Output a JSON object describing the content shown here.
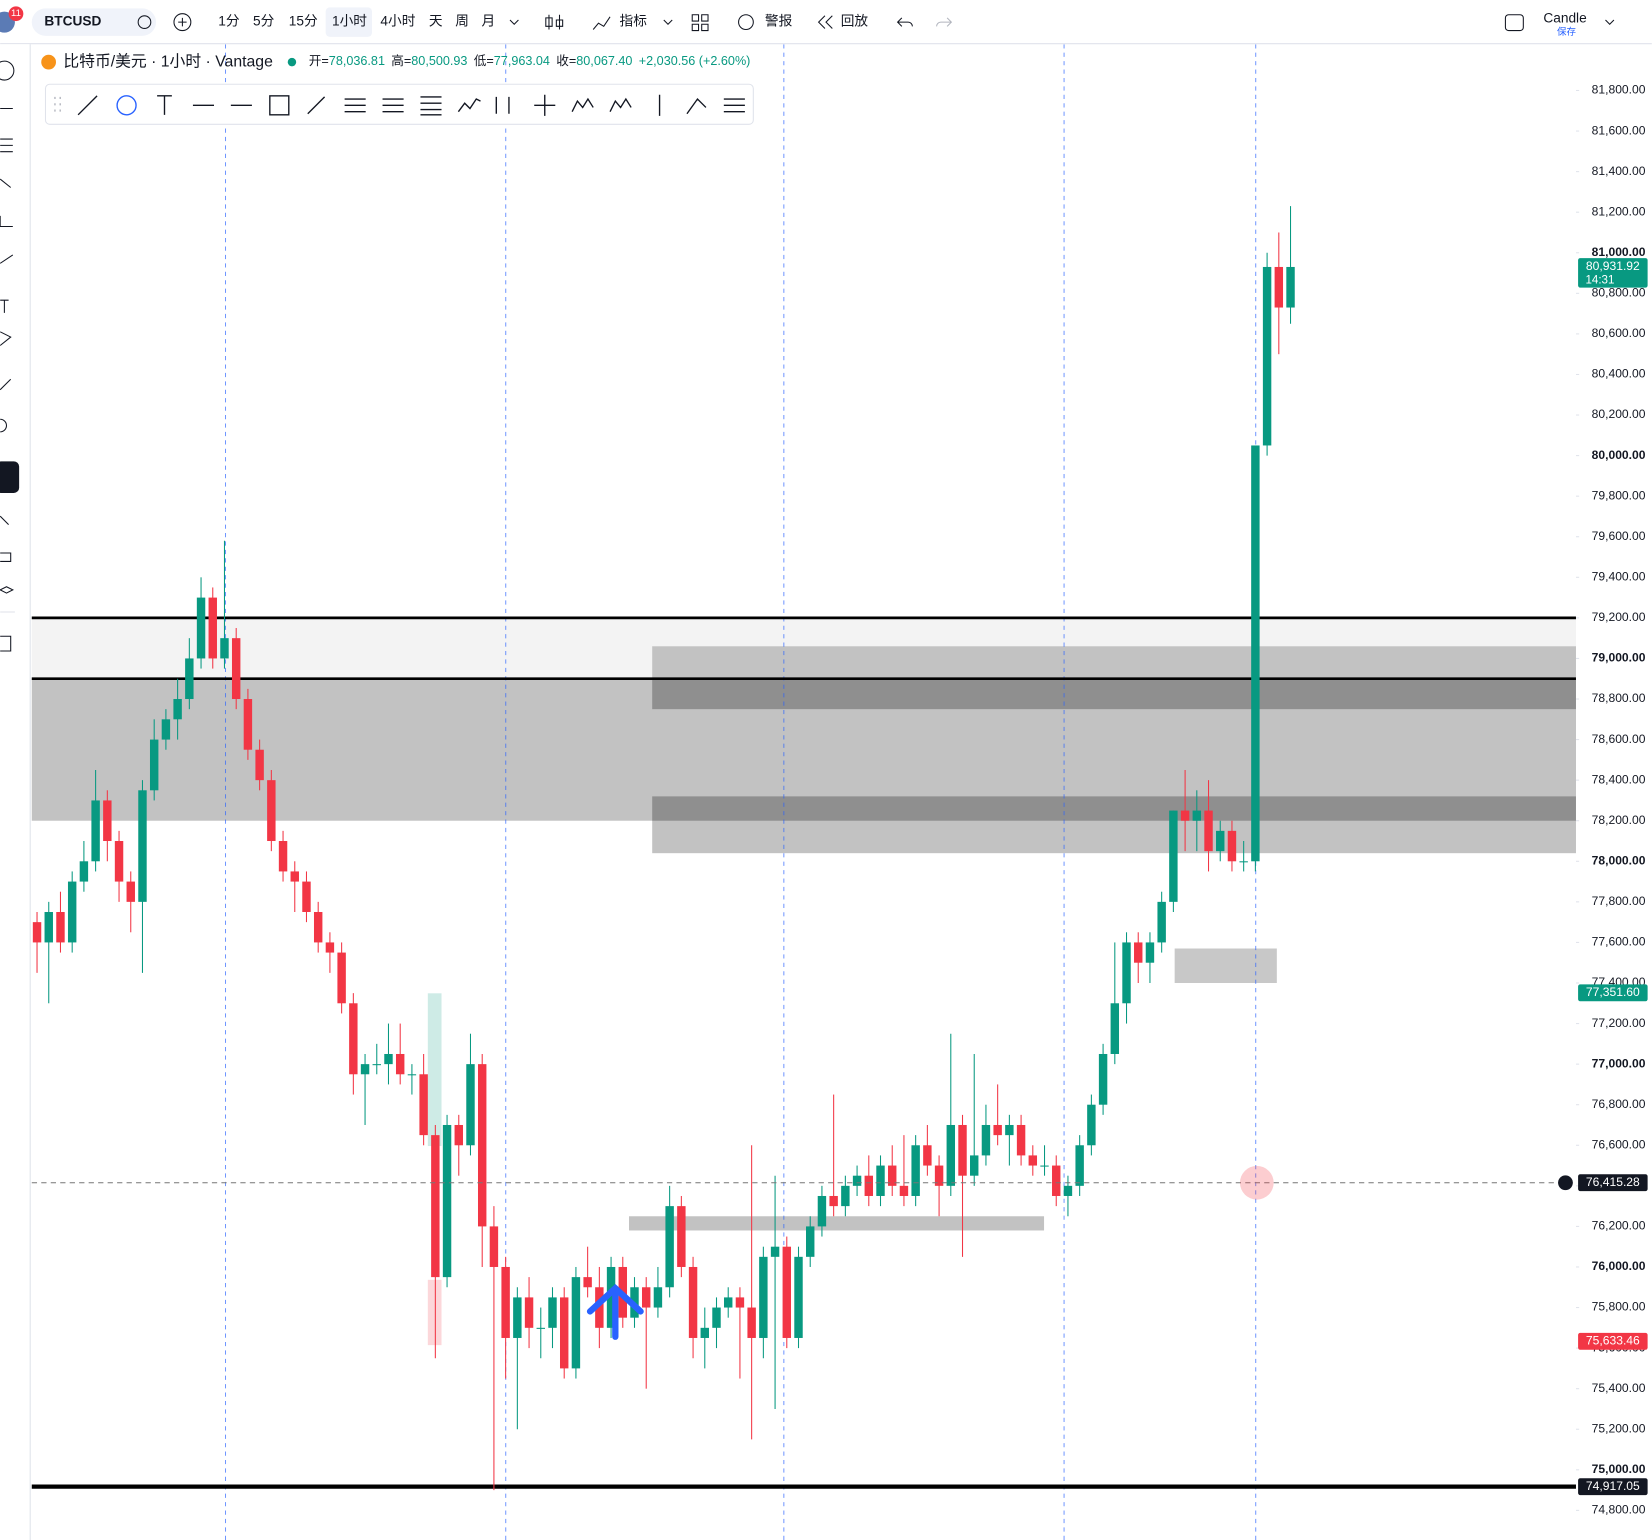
{
  "toolbar": {
    "symbol": "BTCUSD",
    "intervals": [
      "1分",
      "5分",
      "15分",
      "1小时",
      "4小时",
      "天",
      "周",
      "月"
    ],
    "indicators": "指标",
    "alert": "警报",
    "replay": "回放",
    "layout": "Candle",
    "save": "保存",
    "badge": "11"
  },
  "legend": {
    "title": "比特币/美元 · 1小时 · Vantage",
    "items": [
      {
        "k": "开=",
        "v": "78,036.81"
      },
      {
        "k": "高=",
        "v": "80,500.93"
      },
      {
        "k": "低=",
        "v": "77,963.04"
      },
      {
        "k": "收=",
        "v": "80,067.40"
      }
    ],
    "change": "+2,030.56 (+2.60%)"
  },
  "chart_data": {
    "type": "candlestick",
    "up_color": "#089981",
    "down_color": "#f23645",
    "ylim": [
      74654,
      82028
    ],
    "yticks": [
      {
        "value": 81800,
        "label": "81,800.00"
      },
      {
        "value": 81600,
        "label": "81,600.00"
      },
      {
        "value": 81400,
        "label": "81,400.00"
      },
      {
        "value": 81200,
        "label": "81,200.00"
      },
      {
        "value": 81000,
        "label": "81,000.00"
      },
      {
        "value": 80800,
        "label": "80,800.00"
      },
      {
        "value": 80600,
        "label": "80,600.00"
      },
      {
        "value": 80400,
        "label": "80,400.00"
      },
      {
        "value": 80200,
        "label": "80,200.00"
      },
      {
        "value": 80000,
        "label": "80,000.00"
      },
      {
        "value": 79800,
        "label": "79,800.00"
      },
      {
        "value": 79600,
        "label": "79,600.00"
      },
      {
        "value": 79400,
        "label": "79,400.00"
      },
      {
        "value": 79200,
        "label": "79,200.00"
      },
      {
        "value": 79000,
        "label": "79,000.00"
      },
      {
        "value": 78800,
        "label": "78,800.00"
      },
      {
        "value": 78600,
        "label": "78,600.00"
      },
      {
        "value": 78400,
        "label": "78,400.00"
      },
      {
        "value": 78200,
        "label": "78,200.00"
      },
      {
        "value": 78000,
        "label": "78,000.00"
      },
      {
        "value": 77800,
        "label": "77,800.00"
      },
      {
        "value": 77600,
        "label": "77,600.00"
      },
      {
        "value": 77400,
        "label": "77,400.00"
      },
      {
        "value": 77200,
        "label": "77,200.00"
      },
      {
        "value": 77000,
        "label": "77,000.00"
      },
      {
        "value": 76800,
        "label": "76,800.00"
      },
      {
        "value": 76600,
        "label": "76,600.00"
      },
      {
        "value": 76400,
        "label": "76,400.00"
      },
      {
        "value": 76200,
        "label": "76,200.00"
      },
      {
        "value": 76000,
        "label": "76,000.00"
      },
      {
        "value": 75800,
        "label": "75,800.00"
      },
      {
        "value": 75600,
        "label": "75,600.00"
      },
      {
        "value": 75400,
        "label": "75,400.00"
      },
      {
        "value": 75200,
        "label": "75,200.00"
      },
      {
        "value": 75000,
        "label": "75,000.00"
      },
      {
        "value": 74800,
        "label": "74,800.00"
      }
    ],
    "price_tags": [
      {
        "value": 80931.92,
        "label": "80,931.92",
        "sub": "14:31",
        "color": "#089981"
      },
      {
        "value": 77351.6,
        "label": "77,351.60",
        "color": "#089981"
      },
      {
        "value": 75633.46,
        "label": "75,633.46",
        "color": "#f23645"
      },
      {
        "value": 74917.05,
        "label": "74,917.05",
        "color": "#131722"
      },
      {
        "value": 76415.28,
        "label": "76,415.28",
        "color": "#131722"
      }
    ],
    "levels": [
      79200,
      78900,
      74917.05
    ],
    "zones": [
      {
        "from": 79200,
        "to": 78900,
        "color": "#f3f3f3"
      },
      {
        "from": 78900,
        "to": 78200,
        "color": "#c2c2c2"
      },
      {
        "from": 79060,
        "to": 78040,
        "color": "#c2c2c2"
      },
      {
        "from": 78900,
        "to": 78750,
        "color": "#8f8f8f"
      },
      {
        "from": 78320,
        "to": 78200,
        "color": "#8f8f8f"
      },
      {
        "from": 76250,
        "to": 76180,
        "color": "#c2c2c2"
      },
      {
        "from": 77570,
        "to": 77400,
        "color": "#c8c8c8"
      }
    ],
    "candles": [
      [
        77700,
        77750,
        77450,
        77600
      ],
      [
        77600,
        77800,
        77300,
        77750
      ],
      [
        77750,
        77850,
        77550,
        77600
      ],
      [
        77600,
        77950,
        77550,
        77900
      ],
      [
        77900,
        78100,
        77850,
        78000
      ],
      [
        78000,
        78450,
        77950,
        78300
      ],
      [
        78300,
        78350,
        78000,
        78100
      ],
      [
        78100,
        78150,
        77800,
        77900
      ],
      [
        77900,
        77950,
        77650,
        77800
      ],
      [
        77800,
        78400,
        77450,
        78350
      ],
      [
        78350,
        78700,
        78300,
        78600
      ],
      [
        78600,
        78750,
        78550,
        78700
      ],
      [
        78700,
        78900,
        78600,
        78800
      ],
      [
        78800,
        79100,
        78750,
        79000
      ],
      [
        79000,
        79400,
        78950,
        79300
      ],
      [
        79300,
        79350,
        78950,
        79000
      ],
      [
        79000,
        79580,
        78950,
        79100
      ],
      [
        79100,
        79150,
        78750,
        78800
      ],
      [
        78800,
        78850,
        78500,
        78550
      ],
      [
        78550,
        78600,
        78350,
        78400
      ],
      [
        78400,
        78450,
        78050,
        78100
      ],
      [
        78100,
        78150,
        77900,
        77950
      ],
      [
        77950,
        78000,
        77750,
        77900
      ],
      [
        77900,
        77950,
        77700,
        77750
      ],
      [
        77750,
        77800,
        77550,
        77600
      ],
      [
        77600,
        77650,
        77450,
        77550
      ],
      [
        77550,
        77600,
        77250,
        77300
      ],
      [
        77300,
        77350,
        76850,
        76950
      ],
      [
        76950,
        77050,
        76700,
        77000
      ],
      [
        77000,
        77100,
        76950,
        77000
      ],
      [
        77000,
        77200,
        76900,
        77050
      ],
      [
        77050,
        77200,
        76900,
        76950
      ],
      [
        76950,
        77000,
        76850,
        76950
      ],
      [
        76950,
        77050,
        76600,
        76650
      ],
      [
        76650,
        76700,
        75550,
        75950
      ],
      [
        75950,
        76750,
        75900,
        76700
      ],
      [
        76700,
        76750,
        76450,
        76600
      ],
      [
        76600,
        77150,
        76550,
        77000
      ],
      [
        77000,
        77050,
        76000,
        76200
      ],
      [
        76200,
        76300,
        74900,
        76000
      ],
      [
        76000,
        76050,
        75450,
        75650
      ],
      [
        75650,
        75900,
        75200,
        75850
      ],
      [
        75850,
        75950,
        75600,
        75700
      ],
      [
        75700,
        75800,
        75550,
        75700
      ],
      [
        75700,
        75900,
        75600,
        75850
      ],
      [
        75850,
        75900,
        75450,
        75500
      ],
      [
        75500,
        76000,
        75450,
        75950
      ],
      [
        75950,
        76100,
        75850,
        75900
      ],
      [
        75900,
        76000,
        75600,
        75700
      ],
      [
        75700,
        76050,
        75650,
        76000
      ],
      [
        76000,
        76050,
        75700,
        75750
      ],
      [
        75750,
        75950,
        75700,
        75900
      ],
      [
        75900,
        75950,
        75400,
        75800
      ],
      [
        75800,
        76000,
        75750,
        75900
      ],
      [
        75900,
        76400,
        75850,
        76300
      ],
      [
        76300,
        76350,
        75950,
        76000
      ],
      [
        76000,
        76050,
        75550,
        75650
      ],
      [
        75650,
        75800,
        75500,
        75700
      ],
      [
        75700,
        75850,
        75600,
        75800
      ],
      [
        75800,
        75900,
        75750,
        75850
      ],
      [
        75850,
        75900,
        75450,
        75800
      ],
      [
        75800,
        76600,
        75150,
        75650
      ],
      [
        75650,
        76100,
        75550,
        76050
      ],
      [
        76050,
        76450,
        75300,
        76100
      ],
      [
        76100,
        76150,
        75600,
        75650
      ],
      [
        75650,
        76100,
        75600,
        76050
      ],
      [
        76050,
        76250,
        76000,
        76200
      ],
      [
        76200,
        76400,
        76150,
        76350
      ],
      [
        76350,
        76850,
        76250,
        76300
      ],
      [
        76300,
        76450,
        76250,
        76400
      ],
      [
        76400,
        76500,
        76350,
        76450
      ],
      [
        76450,
        76550,
        76300,
        76350
      ],
      [
        76350,
        76550,
        76300,
        76500
      ],
      [
        76500,
        76600,
        76350,
        76400
      ],
      [
        76400,
        76650,
        76300,
        76350
      ],
      [
        76350,
        76650,
        76300,
        76600
      ],
      [
        76600,
        76700,
        76450,
        76500
      ],
      [
        76500,
        76550,
        76250,
        76400
      ],
      [
        76400,
        77150,
        76350,
        76700
      ],
      [
        76700,
        76750,
        76050,
        76450
      ],
      [
        76450,
        77050,
        76400,
        76550
      ],
      [
        76550,
        76800,
        76500,
        76700
      ],
      [
        76700,
        76900,
        76600,
        76650
      ],
      [
        76650,
        76750,
        76500,
        76700
      ],
      [
        76700,
        76750,
        76500,
        76550
      ],
      [
        76550,
        76600,
        76450,
        76500
      ],
      [
        76500,
        76600,
        76450,
        76500
      ],
      [
        76500,
        76550,
        76300,
        76350
      ],
      [
        76350,
        76450,
        76250,
        76400
      ],
      [
        76400,
        76650,
        76350,
        76600
      ],
      [
        76600,
        76850,
        76550,
        76800
      ],
      [
        76800,
        77100,
        76750,
        77050
      ],
      [
        77050,
        77600,
        77000,
        77300
      ],
      [
        77300,
        77650,
        77200,
        77600
      ],
      [
        77600,
        77650,
        77400,
        77500
      ],
      [
        77500,
        77650,
        77400,
        77600
      ],
      [
        77600,
        77850,
        77550,
        77800
      ],
      [
        77800,
        78250,
        77750,
        78250
      ],
      [
        78250,
        78450,
        78050,
        78200
      ],
      [
        78200,
        78350,
        78050,
        78250
      ],
      [
        78250,
        78400,
        77950,
        78050
      ],
      [
        78050,
        78200,
        78000,
        78150
      ],
      [
        78150,
        78200,
        77950,
        78000
      ],
      [
        78000,
        78100,
        77950,
        78000
      ],
      [
        78000,
        80050,
        77950,
        80050
      ],
      [
        80050,
        81000,
        80000,
        80930
      ],
      [
        80930,
        81100,
        80500,
        80730
      ],
      [
        80730,
        81230,
        80650,
        80930
      ]
    ]
  }
}
